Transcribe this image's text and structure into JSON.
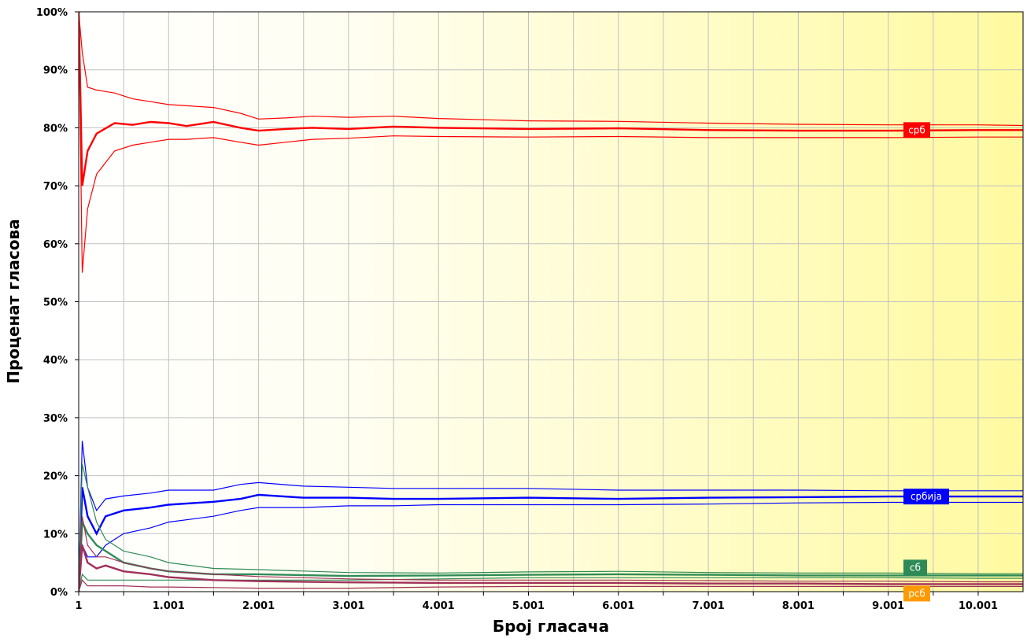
{
  "chart_data": {
    "type": "line",
    "xlabel": "Број гласача",
    "ylabel": "Проценат гласова",
    "xlim": [
      1,
      10500
    ],
    "ylim": [
      0,
      100
    ],
    "x_ticks": [
      1,
      1001,
      2001,
      3001,
      4001,
      5001,
      6001,
      7001,
      8001,
      9001,
      10001
    ],
    "x_tick_labels": [
      "1",
      "1.001",
      "2.001",
      "3.001",
      "4.001",
      "5.001",
      "6.001",
      "7.001",
      "8.001",
      "9.001",
      "10.001"
    ],
    "y_ticks": [
      0,
      10,
      20,
      30,
      40,
      50,
      60,
      70,
      80,
      90,
      100
    ],
    "y_tick_labels": [
      "0%",
      "10%",
      "20%",
      "30%",
      "40%",
      "50%",
      "60%",
      "70%",
      "80%",
      "90%",
      "100%"
    ],
    "grid": true,
    "background": "white-to-yellow gradient",
    "series": [
      {
        "name": "срб",
        "color": "#ff0000",
        "label_bg": "#ff0000",
        "x": [
          1,
          40,
          100,
          200,
          400,
          600,
          800,
          1000,
          1200,
          1500,
          1800,
          2001,
          2300,
          2600,
          3001,
          3500,
          4001,
          5001,
          6001,
          7001,
          8001,
          9001,
          10001,
          10500
        ],
        "values": [
          100,
          70,
          76,
          79,
          80.8,
          80.5,
          81,
          80.8,
          80.3,
          81,
          80,
          79.5,
          79.8,
          80,
          79.8,
          80.2,
          80,
          79.8,
          79.9,
          79.6,
          79.5,
          79.5,
          79.6,
          79.6
        ],
        "upper": [
          100,
          93,
          87,
          86.5,
          86,
          85,
          84.5,
          84,
          83.8,
          83.5,
          82.5,
          81.5,
          81.7,
          82,
          81.8,
          82,
          81.6,
          81.2,
          81.1,
          80.8,
          80.6,
          80.5,
          80.5,
          80.4
        ],
        "lower": [
          100,
          55,
          66,
          72,
          76,
          77,
          77.5,
          78,
          78,
          78.3,
          77.5,
          77,
          77.5,
          78,
          78.2,
          78.6,
          78.5,
          78.4,
          78.5,
          78.3,
          78.3,
          78.3,
          78.4,
          78.4
        ]
      },
      {
        "name": "србија",
        "color": "#0000ff",
        "label_bg": "#0000ff",
        "x": [
          1,
          40,
          100,
          200,
          300,
          500,
          800,
          1000,
          1500,
          1800,
          2001,
          2500,
          3001,
          3500,
          4001,
          5001,
          6001,
          7001,
          8001,
          9001,
          10001,
          10500
        ],
        "values": [
          0,
          18,
          13,
          10,
          13,
          14,
          14.5,
          15,
          15.5,
          16,
          16.7,
          16.2,
          16.2,
          16,
          16,
          16.2,
          16,
          16.2,
          16.3,
          16.4,
          16.4,
          16.4
        ],
        "upper": [
          0,
          26,
          18,
          14,
          16,
          16.5,
          17,
          17.5,
          17.5,
          18.5,
          18.8,
          18.2,
          18,
          17.8,
          17.8,
          17.8,
          17.5,
          17.5,
          17.5,
          17.4,
          17.4,
          17.4
        ],
        "lower": [
          0,
          8,
          6,
          6,
          8,
          10,
          11,
          12,
          13,
          14,
          14.5,
          14.5,
          14.8,
          14.8,
          15,
          15,
          15,
          15.1,
          15.3,
          15.4,
          15.4,
          15.4
        ]
      },
      {
        "name": "сб",
        "color": "#2e8b57",
        "label_bg": "#2e8b57",
        "x": [
          1,
          40,
          100,
          200,
          300,
          500,
          800,
          1000,
          1500,
          2001,
          3001,
          4001,
          5001,
          6001,
          7001,
          8001,
          9001,
          10001,
          10500
        ],
        "values": [
          0,
          12,
          10,
          8,
          7,
          5,
          4,
          3.5,
          3,
          3,
          2.7,
          2.8,
          2.9,
          3.0,
          2.9,
          2.8,
          2.8,
          2.8,
          2.8
        ],
        "upper": [
          0,
          22,
          18,
          12,
          9,
          7,
          6,
          5,
          4,
          3.8,
          3.3,
          3.2,
          3.4,
          3.5,
          3.3,
          3.2,
          3.2,
          3.1,
          3.1
        ],
        "lower": [
          0,
          3,
          2,
          2,
          2,
          2,
          2,
          2,
          2,
          2,
          2,
          2.2,
          2.4,
          2.4,
          2.4,
          2.4,
          2.4,
          2.3,
          2.3
        ]
      },
      {
        "name": "рсб",
        "color": "#a0305a",
        "label_bg": "#ff9900",
        "x": [
          1,
          40,
          100,
          200,
          300,
          500,
          800,
          1000,
          1500,
          2001,
          3001,
          4001,
          5001,
          6001,
          7001,
          8001,
          9001,
          10001,
          10500
        ],
        "values": [
          0,
          8,
          5,
          4,
          4.5,
          3.5,
          3,
          2.5,
          2,
          1.8,
          1.6,
          1.5,
          1.5,
          1.5,
          1.4,
          1.4,
          1.3,
          1.3,
          1.3
        ],
        "upper": [
          0,
          13,
          8,
          6,
          6,
          5,
          4,
          3.5,
          3,
          2.6,
          2.2,
          2.0,
          2.0,
          2.0,
          1.9,
          1.8,
          1.8,
          1.7,
          1.7
        ],
        "lower": [
          0,
          2,
          1,
          1,
          1,
          1,
          0.8,
          0.8,
          0.7,
          0.6,
          0.6,
          0.8,
          0.9,
          0.9,
          0.9,
          0.9,
          0.9,
          0.9,
          0.9
        ]
      }
    ]
  }
}
